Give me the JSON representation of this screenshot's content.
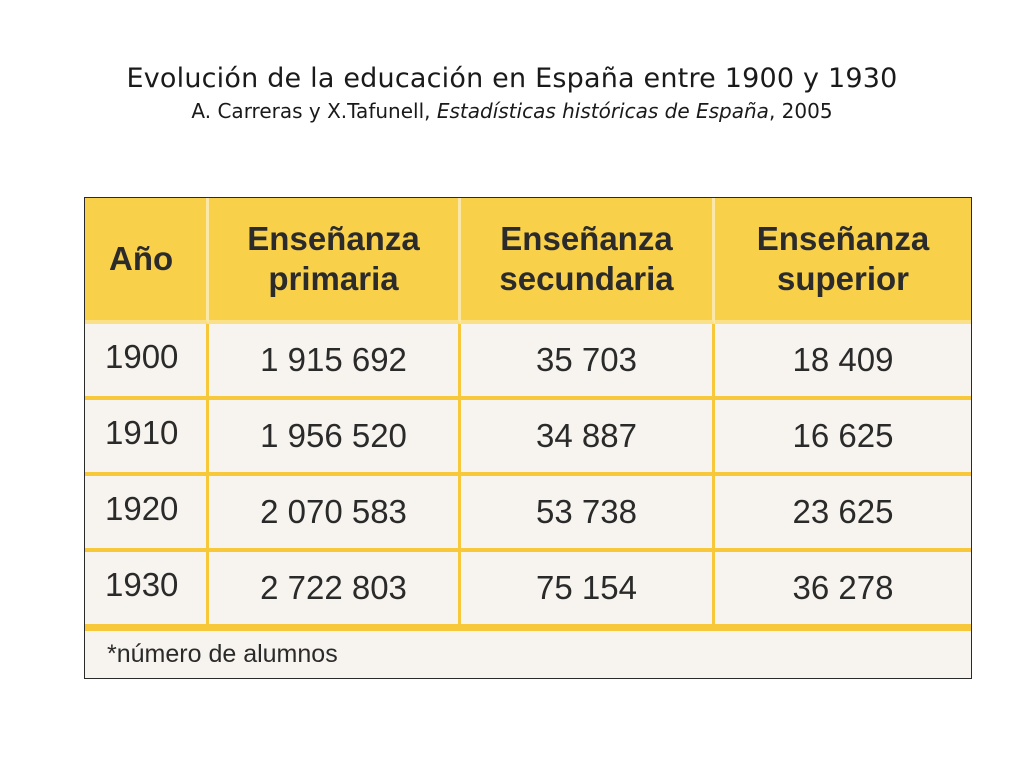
{
  "slide": {
    "title": "Evolución de la educación en España entre 1900 y 1930",
    "subtitle_prefix": "A. Carreras y X.Tafunell, ",
    "subtitle_book": "Estadísticas históricas de España",
    "subtitle_suffix": ", 2005"
  },
  "chart_data": {
    "type": "table",
    "columns": [
      "Año",
      "Enseñanza primaria",
      "Enseñanza secundaria",
      "Enseñanza superior"
    ],
    "header_lines": [
      [
        "Año"
      ],
      [
        "Enseñanza",
        "primaria"
      ],
      [
        "Enseñanza",
        "secundaria"
      ],
      [
        "Enseñanza",
        "superior"
      ]
    ],
    "rows": [
      {
        "year": "1900",
        "primaria": "1 915 692",
        "secundaria": "35 703",
        "superior": "18 409"
      },
      {
        "year": "1910",
        "primaria": "1 956 520",
        "secundaria": "34 887",
        "superior": "16 625"
      },
      {
        "year": "1920",
        "primaria": "2 070 583",
        "secundaria": "53 738",
        "superior": "23 625"
      },
      {
        "year": "1930",
        "primaria": "2 722 803",
        "secundaria": "75 154",
        "superior": "36 278"
      }
    ],
    "footnote": "*número de alumnos",
    "colors": {
      "header_bg": "#f9d04a",
      "grid": "#f7c93a",
      "cell_bg": "#f7f4ef"
    }
  }
}
